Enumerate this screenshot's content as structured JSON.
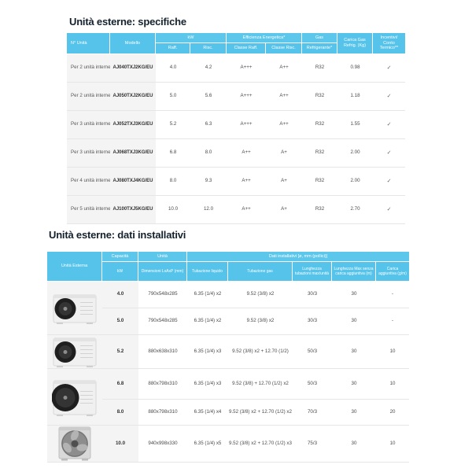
{
  "colors": {
    "header_blue": "#55c3ea",
    "header_blue_group": "#5cc6eb",
    "title_text": "#15222e",
    "body_text": "#4a4a4a",
    "gray_column_bg": "#f4f4f4",
    "row_divider": "#e6e6e6"
  },
  "section1": {
    "title": "Unità esterne: specifiche",
    "table": {
      "headers": {
        "col_unita": "N° Unità",
        "col_modello": "Modello",
        "group_kw": "kW",
        "sub_raff": "Raff.",
        "sub_risc": "Risc.",
        "group_eff": "Efficienza Energetica*",
        "sub_classe_raff": "Classe Raff.",
        "sub_classe_risc": "Classe Risc.",
        "group_gas": "Gas",
        "sub_refrigerante": "Refrigerante*",
        "col_carica": "Carica Gas Refrig. (Kg)",
        "col_incentivi": "Incentivi/ Conto Termico**"
      },
      "rows": [
        {
          "unita": "Per 2 unità interne",
          "modello": "AJ040TXJ2KG/EU",
          "raff": "4.0",
          "risc": "4.2",
          "classe_raff": "A+++",
          "classe_risc": "A++",
          "gas": "R32",
          "carica": "0.98",
          "incentivi": "✓"
        },
        {
          "unita": "Per 2 unità interne",
          "modello": "AJ050TXJ2KG/EU",
          "raff": "5.0",
          "risc": "5.6",
          "classe_raff": "A+++",
          "classe_risc": "A++",
          "gas": "R32",
          "carica": "1.18",
          "incentivi": "✓"
        },
        {
          "unita": "Per 3 unità interne",
          "modello": "AJ052TXJ3KG/EU",
          "raff": "5.2",
          "risc": "6.3",
          "classe_raff": "A+++",
          "classe_risc": "A++",
          "gas": "R32",
          "carica": "1.55",
          "incentivi": "✓"
        },
        {
          "unita": "Per 3 unità interne",
          "modello": "AJ068TXJ3KG/EU",
          "raff": "6.8",
          "risc": "8.0",
          "classe_raff": "A++",
          "classe_risc": "A+",
          "gas": "R32",
          "carica": "2.00",
          "incentivi": "✓"
        },
        {
          "unita": "Per 4 unità interne",
          "modello": "AJ080TXJ4KG/EU",
          "raff": "8.0",
          "risc": "9.3",
          "classe_raff": "A++",
          "classe_risc": "A+",
          "gas": "R32",
          "carica": "2.00",
          "incentivi": "✓"
        },
        {
          "unita": "Per 5 unità interne",
          "modello": "AJ100TXJ5KG/EU",
          "raff": "10.0",
          "risc": "12.0",
          "classe_raff": "A++",
          "classe_risc": "A+",
          "gas": "R32",
          "carica": "2.70",
          "incentivi": "✓"
        }
      ]
    }
  },
  "section2": {
    "title": "Unità esterne: dati installativi",
    "table": {
      "headers": {
        "col_unita_esterna": "Unità Esterna",
        "group_capacita": "Capacità",
        "sub_kw": "kW",
        "group_unita": "Unità",
        "sub_dimensioni": "Dimensioni LxAxP (mm)",
        "group_dati": "Dati installativi [ø, mm (pollici)]",
        "sub_tubazione_liquido": "Tubazione liquido",
        "sub_tubazione_gas": "Tubazione gas",
        "sub_lunghezza": "Lunghezza tubazioni max/unità",
        "sub_lunghezza_max": "Lunghezza Max senza carica aggiuntiva (m)",
        "sub_carica_aggiuntiva": "Carica aggiuntiva (g/m)"
      },
      "rows": [
        {
          "kw": "4.0",
          "dimensioni": "790x548x285",
          "tubazione_liquido": "6.35 (1/4) x2",
          "tubazione_gas": "9.52 (3/8) x2",
          "lunghezza": "30/3",
          "lunghezza_max": "30",
          "carica_aggiuntiva": "-"
        },
        {
          "kw": "5.0",
          "dimensioni": "790x548x285",
          "tubazione_liquido": "6.35 (1/4) x2",
          "tubazione_gas": "9.52 (3/8) x2",
          "lunghezza": "30/3",
          "lunghezza_max": "30",
          "carica_aggiuntiva": "-"
        },
        {
          "kw": "5.2",
          "dimensioni": "880x638x310",
          "tubazione_liquido": "6.35 (1/4) x3",
          "tubazione_gas": "9.52 (3/8) x2 + 12.70 (1/2)",
          "lunghezza": "50/3",
          "lunghezza_max": "30",
          "carica_aggiuntiva": "10"
        },
        {
          "kw": "6.8",
          "dimensioni": "880x798x310",
          "tubazione_liquido": "6.35 (1/4) x3",
          "tubazione_gas": "9.52 (3/8) + 12.70 (1/2) x2",
          "lunghezza": "50/3",
          "lunghezza_max": "30",
          "carica_aggiuntiva": "10"
        },
        {
          "kw": "8.0",
          "dimensioni": "880x798x310",
          "tubazione_liquido": "6.35 (1/4) x4",
          "tubazione_gas": "9.52 (3/8) x2 + 12.70 (1/2) x2",
          "lunghezza": "70/3",
          "lunghezza_max": "30",
          "carica_aggiuntiva": "20"
        },
        {
          "kw": "10.0",
          "dimensioni": "940x998x330",
          "tubazione_liquido": "6.35 (1/4) x5",
          "tubazione_gas": "9.52 (3/8) x2 + 12.70 (1/2) x3",
          "lunghezza": "75/3",
          "lunghezza_max": "30",
          "carica_aggiuntiva": "10"
        }
      ]
    }
  }
}
